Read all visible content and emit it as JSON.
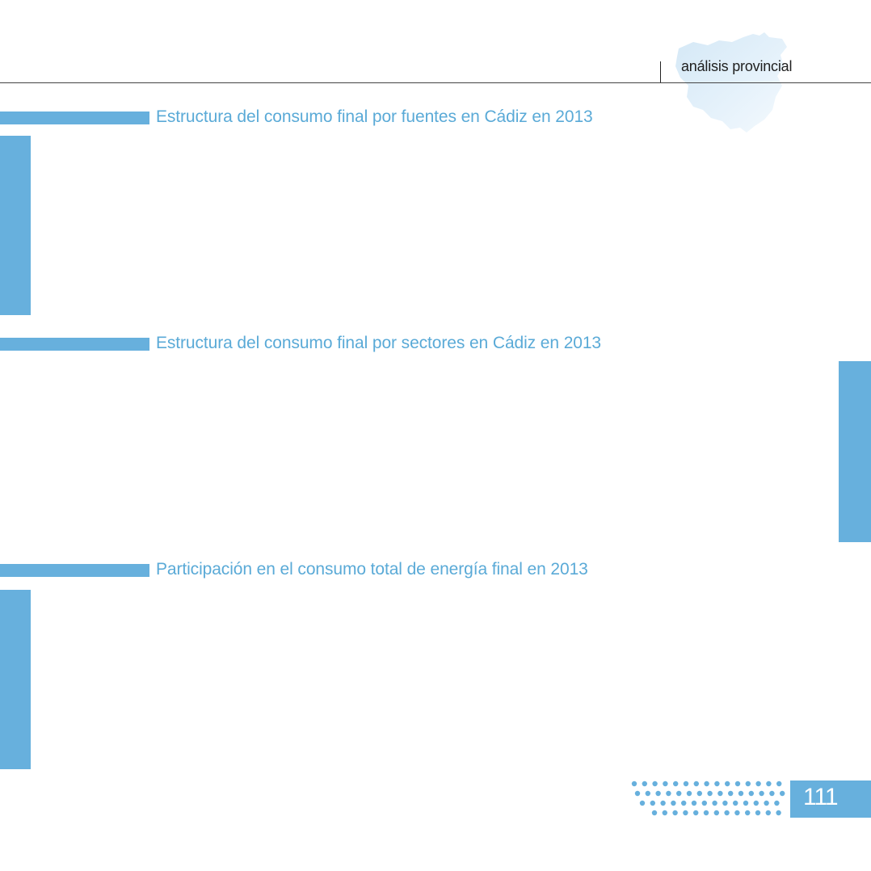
{
  "header": {
    "section_label": "análisis provincial"
  },
  "sections": [
    {
      "title": "Estructura del consumo final por fuentes en Cádiz en 2013"
    },
    {
      "title": "Estructura del consumo final por sectores en Cádiz en 2013"
    },
    {
      "title": "Participación en el consumo total de energía final en 2013"
    }
  ],
  "footer": {
    "page_number": "111"
  },
  "colors": {
    "accent": "#67b0dd",
    "title_text": "#5aaad7",
    "map_light": "#e3f0fa"
  }
}
